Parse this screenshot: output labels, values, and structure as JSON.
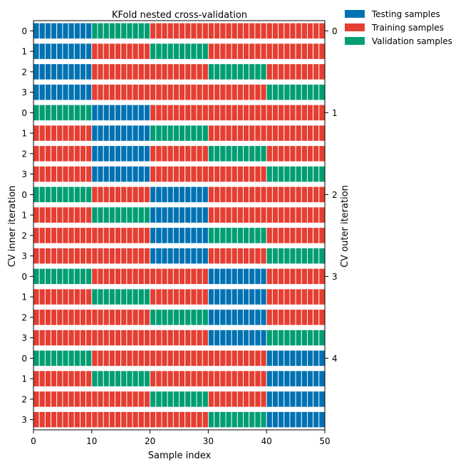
{
  "chart_data": {
    "type": "bar",
    "title": "KFold nested cross-validation",
    "xlabel": "Sample index",
    "ylabel_left": "CV inner iteration",
    "ylabel_right": "CV outer iteration",
    "xlim": [
      0,
      50
    ],
    "x_ticks": [
      "0",
      "10",
      "20",
      "30",
      "40",
      "50"
    ],
    "n_samples": 50,
    "fold_size": 10,
    "n_outer_folds": 5,
    "n_inner_folds": 4,
    "inner_tick_labels": [
      "0",
      "1",
      "2",
      "3"
    ],
    "outer_tick_labels": [
      "0",
      "1",
      "2",
      "3",
      "4"
    ],
    "legend_position": "outside-top-right",
    "legend": [
      {
        "key": "test",
        "label": "Testing samples",
        "color": "#0072b2"
      },
      {
        "key": "train",
        "label": "Training samples",
        "color": "#e53e32"
      },
      {
        "key": "val",
        "label": "Validation samples",
        "color": "#009e73"
      }
    ],
    "rows": [
      {
        "outer": 0,
        "inner": 0,
        "folds": [
          "test",
          "val",
          "train",
          "train",
          "train"
        ]
      },
      {
        "outer": 0,
        "inner": 1,
        "folds": [
          "test",
          "train",
          "val",
          "train",
          "train"
        ]
      },
      {
        "outer": 0,
        "inner": 2,
        "folds": [
          "test",
          "train",
          "train",
          "val",
          "train"
        ]
      },
      {
        "outer": 0,
        "inner": 3,
        "folds": [
          "test",
          "train",
          "train",
          "train",
          "val"
        ]
      },
      {
        "outer": 1,
        "inner": 0,
        "folds": [
          "val",
          "test",
          "train",
          "train",
          "train"
        ]
      },
      {
        "outer": 1,
        "inner": 1,
        "folds": [
          "train",
          "test",
          "val",
          "train",
          "train"
        ]
      },
      {
        "outer": 1,
        "inner": 2,
        "folds": [
          "train",
          "test",
          "train",
          "val",
          "train"
        ]
      },
      {
        "outer": 1,
        "inner": 3,
        "folds": [
          "train",
          "test",
          "train",
          "train",
          "val"
        ]
      },
      {
        "outer": 2,
        "inner": 0,
        "folds": [
          "val",
          "train",
          "test",
          "train",
          "train"
        ]
      },
      {
        "outer": 2,
        "inner": 1,
        "folds": [
          "train",
          "val",
          "test",
          "train",
          "train"
        ]
      },
      {
        "outer": 2,
        "inner": 2,
        "folds": [
          "train",
          "train",
          "test",
          "val",
          "train"
        ]
      },
      {
        "outer": 2,
        "inner": 3,
        "folds": [
          "train",
          "train",
          "test",
          "train",
          "val"
        ]
      },
      {
        "outer": 3,
        "inner": 0,
        "folds": [
          "val",
          "train",
          "train",
          "test",
          "train"
        ]
      },
      {
        "outer": 3,
        "inner": 1,
        "folds": [
          "train",
          "val",
          "train",
          "test",
          "train"
        ]
      },
      {
        "outer": 3,
        "inner": 2,
        "folds": [
          "train",
          "train",
          "val",
          "test",
          "train"
        ]
      },
      {
        "outer": 3,
        "inner": 3,
        "folds": [
          "train",
          "train",
          "train",
          "test",
          "val"
        ]
      },
      {
        "outer": 4,
        "inner": 0,
        "folds": [
          "val",
          "train",
          "train",
          "train",
          "test"
        ]
      },
      {
        "outer": 4,
        "inner": 1,
        "folds": [
          "train",
          "val",
          "train",
          "train",
          "test"
        ]
      },
      {
        "outer": 4,
        "inner": 2,
        "folds": [
          "train",
          "train",
          "val",
          "train",
          "test"
        ]
      },
      {
        "outer": 4,
        "inner": 3,
        "folds": [
          "train",
          "train",
          "train",
          "val",
          "test"
        ]
      }
    ]
  }
}
